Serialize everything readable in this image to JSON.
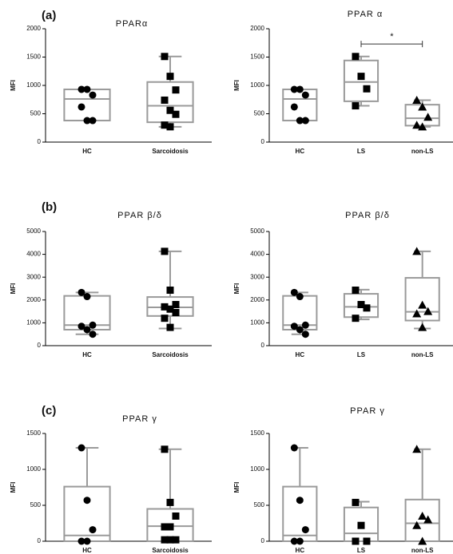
{
  "chart_data": [
    {
      "type": "box",
      "panel": "(a)",
      "title": "PPARα",
      "ylabel": "MFI",
      "ylim": [
        0,
        2000
      ],
      "yticks": [
        0,
        500,
        1000,
        1500,
        2000
      ],
      "categories": [
        "HC",
        "Sarcoidosis"
      ],
      "boxes": [
        {
          "min": 380,
          "q1": 380,
          "median": 760,
          "q3": 930,
          "max": 930,
          "marker": "circle",
          "points": [
            930,
            930,
            830,
            620,
            380,
            380
          ]
        },
        {
          "min": 270,
          "q1": 350,
          "median": 640,
          "q3": 1060,
          "max": 1510,
          "marker": "square",
          "points": [
            1510,
            1160,
            920,
            740,
            560,
            490,
            300,
            270
          ]
        }
      ]
    },
    {
      "type": "box",
      "title": "PPAR α",
      "ylabel": "MFI",
      "ylim": [
        0,
        2000
      ],
      "yticks": [
        0,
        500,
        1000,
        1500,
        2000
      ],
      "categories": [
        "HC",
        "LS",
        "non-LS"
      ],
      "boxes": [
        {
          "min": 380,
          "q1": 380,
          "median": 760,
          "q3": 930,
          "max": 930,
          "marker": "circle",
          "points": [
            930,
            930,
            830,
            620,
            380,
            380
          ]
        },
        {
          "min": 640,
          "q1": 720,
          "median": 1060,
          "q3": 1440,
          "max": 1510,
          "marker": "square",
          "points": [
            1510,
            1160,
            940,
            640
          ]
        },
        {
          "min": 270,
          "q1": 290,
          "median": 420,
          "q3": 660,
          "max": 740,
          "marker": "triangle",
          "points": [
            740,
            620,
            440,
            300,
            270
          ]
        }
      ],
      "annotation": {
        "text": "*",
        "y": 1730,
        "between": [
          "LS",
          "non-LS"
        ]
      }
    },
    {
      "type": "box",
      "panel": "(b)",
      "title": "PPAR β/δ",
      "ylabel": "MFI",
      "ylim": [
        0,
        5000
      ],
      "yticks": [
        0,
        1000,
        2000,
        3000,
        4000,
        5000
      ],
      "categories": [
        "HC",
        "Sarcoidosis"
      ],
      "boxes": [
        {
          "min": 500,
          "q1": 700,
          "median": 900,
          "q3": 2180,
          "max": 2330,
          "marker": "circle",
          "points": [
            2330,
            2150,
            900,
            850,
            700,
            500
          ]
        },
        {
          "min": 750,
          "q1": 1300,
          "median": 1680,
          "q3": 2130,
          "max": 4130,
          "marker": "square",
          "points": [
            4130,
            2430,
            1800,
            1700,
            1600,
            1450,
            1200,
            800
          ]
        }
      ]
    },
    {
      "type": "box",
      "title": "PPAR β/δ",
      "ylabel": "MFI",
      "ylim": [
        0,
        5000
      ],
      "yticks": [
        0,
        1000,
        2000,
        3000,
        4000,
        5000
      ],
      "categories": [
        "HC",
        "LS",
        "non-LS"
      ],
      "boxes": [
        {
          "min": 500,
          "q1": 700,
          "median": 900,
          "q3": 2180,
          "max": 2330,
          "marker": "circle",
          "points": [
            2330,
            2150,
            900,
            850,
            700,
            500
          ]
        },
        {
          "min": 1150,
          "q1": 1250,
          "median": 1700,
          "q3": 2270,
          "max": 2450,
          "marker": "square",
          "points": [
            2430,
            1800,
            1650,
            1200
          ]
        },
        {
          "min": 750,
          "q1": 1100,
          "median": 1480,
          "q3": 2970,
          "max": 4130,
          "marker": "triangle",
          "points": [
            4130,
            1780,
            1500,
            1400,
            800
          ]
        }
      ]
    },
    {
      "type": "box",
      "panel": "(c)",
      "title": "PPAR γ",
      "ylabel": "MFI",
      "ylim": [
        0,
        1500
      ],
      "yticks": [
        0,
        500,
        1000,
        1500
      ],
      "categories": [
        "HC",
        "Sarcoidosis"
      ],
      "boxes": [
        {
          "min": 0,
          "q1": 0,
          "median": 80,
          "q3": 760,
          "max": 1300,
          "marker": "circle",
          "points": [
            1300,
            570,
            160,
            0,
            0
          ]
        },
        {
          "min": 0,
          "q1": 0,
          "median": 210,
          "q3": 450,
          "max": 1280,
          "marker": "square",
          "points": [
            1280,
            540,
            350,
            200,
            200,
            20,
            20,
            20
          ]
        }
      ]
    },
    {
      "type": "box",
      "title": "PPAR γ",
      "ylabel": "MFI",
      "ylim": [
        0,
        1500
      ],
      "yticks": [
        0,
        500,
        1000,
        1500
      ],
      "categories": [
        "HC",
        "LS",
        "non-LS"
      ],
      "boxes": [
        {
          "min": 0,
          "q1": 0,
          "median": 80,
          "q3": 760,
          "max": 1300,
          "marker": "circle",
          "points": [
            1300,
            570,
            160,
            0,
            0
          ]
        },
        {
          "min": 0,
          "q1": 0,
          "median": 110,
          "q3": 470,
          "max": 550,
          "marker": "square",
          "points": [
            540,
            220,
            0,
            0
          ]
        },
        {
          "min": 0,
          "q1": 0,
          "median": 250,
          "q3": 580,
          "max": 1280,
          "marker": "triangle",
          "points": [
            1280,
            350,
            300,
            220,
            0
          ]
        }
      ]
    }
  ]
}
